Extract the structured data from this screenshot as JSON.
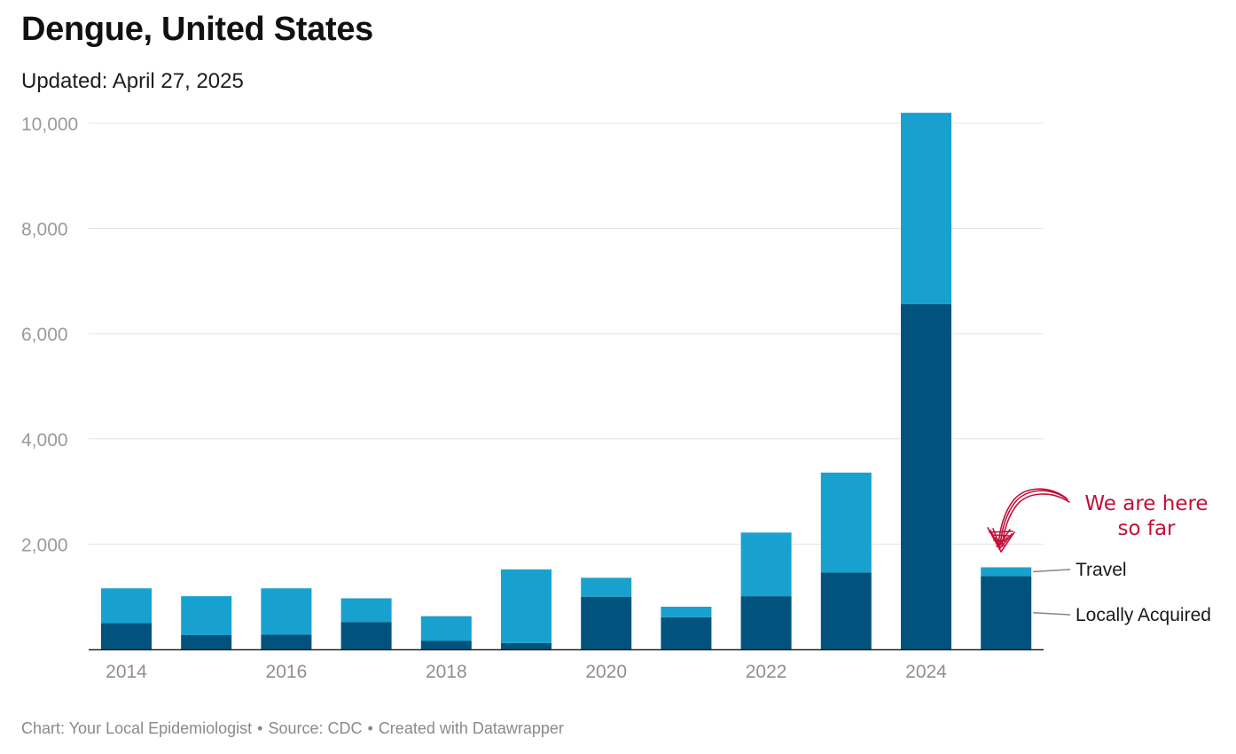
{
  "title": "Dengue, United States",
  "subtitle": "Updated: April 27, 2025",
  "footer": {
    "chart_credit": "Chart: Your Local Epidemiologist",
    "source": "Source: CDC",
    "tool": "Created with Datawrapper",
    "separator": "•"
  },
  "colors": {
    "locally_acquired": "#01537d",
    "travel": "#18a1ce",
    "gridline": "#e3e3e3",
    "axis_line": "#222222",
    "tick_label": "#9a9a9a",
    "annotation": "#c40f38",
    "leader_line": "#888888"
  },
  "annotation": {
    "lines": [
      "We are here",
      "so far"
    ],
    "target_category": "2025",
    "arrow": "hand-drawn curved arrow pointing down to 2025 bar"
  },
  "chart_data": {
    "type": "bar",
    "stacked": true,
    "categories": [
      "2014",
      "2015",
      "2016",
      "2017",
      "2018",
      "2019",
      "2020",
      "2021",
      "2022",
      "2023",
      "2024",
      "2025"
    ],
    "xtick_labels": [
      "2014",
      "2016",
      "2018",
      "2020",
      "2022",
      "2024"
    ],
    "series": [
      {
        "name": "Locally Acquired",
        "values": [
          500,
          270,
          280,
          520,
          160,
          120,
          1000,
          610,
          1010,
          1460,
          6560,
          1390
        ]
      },
      {
        "name": "Travel",
        "values": [
          660,
          740,
          880,
          450,
          470,
          1400,
          360,
          200,
          1210,
          1900,
          3640,
          170
        ]
      }
    ],
    "ylim": [
      0,
      10200
    ],
    "yticks": [
      2000,
      4000,
      6000,
      8000,
      10000
    ],
    "ytick_labels": [
      "2,000",
      "4,000",
      "6,000",
      "8,000",
      "10,000"
    ],
    "grid": true,
    "legend": "direct labels at right of last bar",
    "xlabel": "",
    "ylabel": ""
  }
}
